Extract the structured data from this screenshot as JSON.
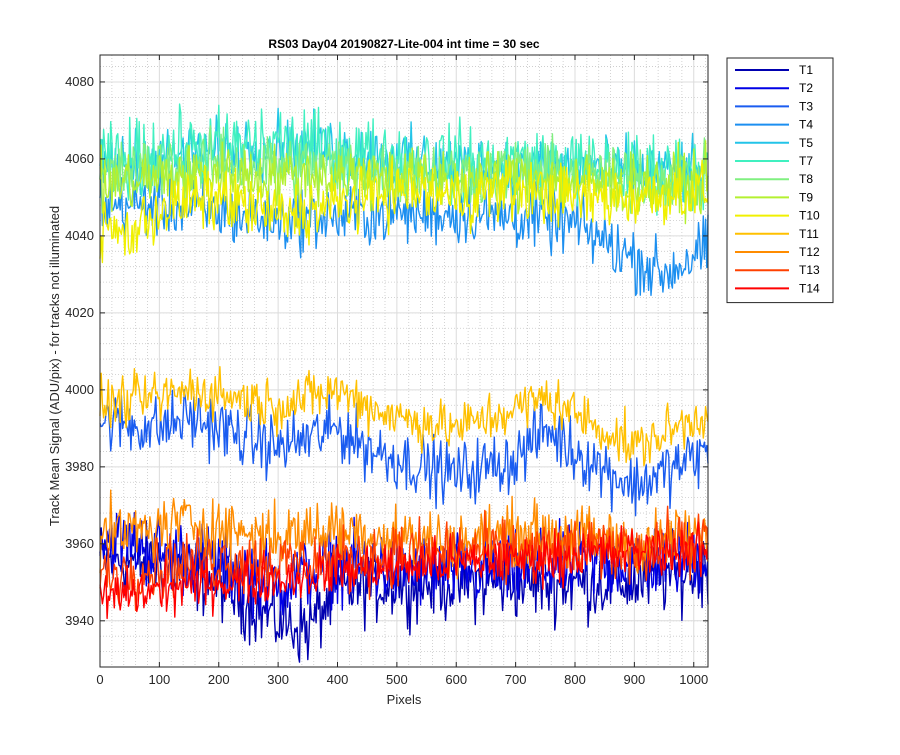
{
  "chart_data": {
    "type": "line",
    "title": "RS03 Day04 20190827-Lite-004 int time = 30 sec",
    "xlabel": "Pixels",
    "ylabel": "Track Mean Signal (ADU/pix) - for tracks not illuminated",
    "xlim": [
      0,
      1024
    ],
    "ylim": [
      3928,
      4087
    ],
    "x_ticks": [
      0,
      100,
      200,
      300,
      400,
      500,
      600,
      700,
      800,
      900,
      1000
    ],
    "y_ticks": [
      3940,
      3960,
      3980,
      4000,
      4020,
      4040,
      4060,
      4080
    ],
    "grid": "on (major and minor)",
    "legend_position": "outside-top-right",
    "series": [
      {
        "name": "T1",
        "color": "#0000b0",
        "base": [
          [
            0,
            3956
          ],
          [
            100,
            3955
          ],
          [
            200,
            3950
          ],
          [
            300,
            3940
          ],
          [
            350,
            3938
          ],
          [
            400,
            3948
          ],
          [
            500,
            3950
          ],
          [
            600,
            3950
          ],
          [
            700,
            3950
          ],
          [
            800,
            3950
          ],
          [
            900,
            3950
          ],
          [
            1024,
            3954
          ]
        ],
        "noise": 6
      },
      {
        "name": "T2",
        "color": "#0000e6",
        "base": [
          [
            0,
            3962
          ],
          [
            100,
            3958
          ],
          [
            200,
            3955
          ],
          [
            300,
            3950
          ],
          [
            400,
            3955
          ],
          [
            500,
            3953
          ],
          [
            600,
            3953
          ],
          [
            700,
            3953
          ],
          [
            800,
            3955
          ],
          [
            900,
            3955
          ],
          [
            1024,
            3957
          ]
        ],
        "noise": 6
      },
      {
        "name": "T3",
        "color": "#1a5cf0",
        "base": [
          [
            0,
            3992
          ],
          [
            100,
            3990
          ],
          [
            150,
            3993
          ],
          [
            200,
            3990
          ],
          [
            300,
            3985
          ],
          [
            400,
            3990
          ],
          [
            450,
            3985
          ],
          [
            500,
            3982
          ],
          [
            600,
            3978
          ],
          [
            700,
            3982
          ],
          [
            750,
            3990
          ],
          [
            800,
            3984
          ],
          [
            900,
            3975
          ],
          [
            1024,
            3984
          ]
        ],
        "noise": 5
      },
      {
        "name": "T4",
        "color": "#1c8ff0",
        "base": [
          [
            0,
            4048
          ],
          [
            100,
            4048
          ],
          [
            200,
            4046
          ],
          [
            300,
            4044
          ],
          [
            400,
            4045
          ],
          [
            500,
            4046
          ],
          [
            600,
            4046
          ],
          [
            700,
            4045
          ],
          [
            800,
            4043
          ],
          [
            900,
            4034
          ],
          [
            950,
            4030
          ],
          [
            1024,
            4037
          ]
        ],
        "noise": 5
      },
      {
        "name": "T5",
        "color": "#23c4e8",
        "base": [
          [
            0,
            4058
          ],
          [
            100,
            4060
          ],
          [
            200,
            4062
          ],
          [
            300,
            4064
          ],
          [
            400,
            4062
          ],
          [
            500,
            4060
          ],
          [
            600,
            4058
          ],
          [
            700,
            4058
          ],
          [
            800,
            4058
          ],
          [
            900,
            4057
          ],
          [
            1024,
            4056
          ]
        ],
        "noise": 5
      },
      {
        "name": "T7",
        "color": "#40f0c0",
        "base": [
          [
            0,
            4058
          ],
          [
            100,
            4062
          ],
          [
            200,
            4063
          ],
          [
            300,
            4064
          ],
          [
            400,
            4062
          ],
          [
            500,
            4060
          ],
          [
            600,
            4059
          ],
          [
            700,
            4059
          ],
          [
            800,
            4058
          ],
          [
            900,
            4057
          ],
          [
            1024,
            4057
          ]
        ],
        "noise": 6
      },
      {
        "name": "T8",
        "color": "#80f080",
        "base": [
          [
            0,
            4055
          ],
          [
            100,
            4058
          ],
          [
            200,
            4059
          ],
          [
            300,
            4058
          ],
          [
            400,
            4058
          ],
          [
            500,
            4057
          ],
          [
            600,
            4056
          ],
          [
            700,
            4057
          ],
          [
            800,
            4056
          ],
          [
            900,
            4055
          ],
          [
            1024,
            4055
          ]
        ],
        "noise": 5
      },
      {
        "name": "T9",
        "color": "#b4f030",
        "base": [
          [
            0,
            4053
          ],
          [
            100,
            4055
          ],
          [
            200,
            4056
          ],
          [
            300,
            4055
          ],
          [
            400,
            4056
          ],
          [
            500,
            4055
          ],
          [
            600,
            4054
          ],
          [
            700,
            4055
          ],
          [
            800,
            4054
          ],
          [
            900,
            4053
          ],
          [
            1024,
            4054
          ]
        ],
        "noise": 5
      },
      {
        "name": "T10",
        "color": "#f0f000",
        "base": [
          [
            0,
            4042
          ],
          [
            50,
            4040
          ],
          [
            100,
            4047
          ],
          [
            200,
            4050
          ],
          [
            300,
            4045
          ],
          [
            400,
            4048
          ],
          [
            500,
            4052
          ],
          [
            600,
            4050
          ],
          [
            700,
            4052
          ],
          [
            800,
            4050
          ],
          [
            900,
            4050
          ],
          [
            1024,
            4052
          ]
        ],
        "noise": 5
      },
      {
        "name": "T11",
        "color": "#ffc000",
        "base": [
          [
            0,
            3996
          ],
          [
            100,
            3998
          ],
          [
            150,
            4000
          ],
          [
            200,
            3999
          ],
          [
            300,
            3996
          ],
          [
            350,
            3998
          ],
          [
            400,
            4000
          ],
          [
            450,
            3996
          ],
          [
            500,
            3993
          ],
          [
            600,
            3990
          ],
          [
            700,
            3995
          ],
          [
            750,
            3998
          ],
          [
            800,
            3994
          ],
          [
            900,
            3985
          ],
          [
            1024,
            3994
          ]
        ],
        "noise": 4
      },
      {
        "name": "T12",
        "color": "#ff8c00",
        "base": [
          [
            0,
            3962
          ],
          [
            100,
            3964
          ],
          [
            150,
            3966
          ],
          [
            200,
            3964
          ],
          [
            300,
            3962
          ],
          [
            400,
            3964
          ],
          [
            500,
            3962
          ],
          [
            600,
            3960
          ],
          [
            700,
            3963
          ],
          [
            800,
            3962
          ],
          [
            900,
            3960
          ],
          [
            1024,
            3962
          ]
        ],
        "noise": 5
      },
      {
        "name": "T13",
        "color": "#ff4000",
        "base": [
          [
            0,
            3952
          ],
          [
            100,
            3954
          ],
          [
            200,
            3956
          ],
          [
            300,
            3955
          ],
          [
            400,
            3956
          ],
          [
            500,
            3957
          ],
          [
            600,
            3958
          ],
          [
            700,
            3958
          ],
          [
            800,
            3958
          ],
          [
            900,
            3959
          ],
          [
            1024,
            3961
          ]
        ],
        "noise": 5
      },
      {
        "name": "T14",
        "color": "#ff0000",
        "base": [
          [
            0,
            3946
          ],
          [
            100,
            3948
          ],
          [
            200,
            3950
          ],
          [
            300,
            3951
          ],
          [
            400,
            3953
          ],
          [
            500,
            3954
          ],
          [
            600,
            3955
          ],
          [
            700,
            3956
          ],
          [
            800,
            3957
          ],
          [
            900,
            3958
          ],
          [
            1024,
            3958
          ]
        ],
        "noise": 4
      }
    ]
  }
}
